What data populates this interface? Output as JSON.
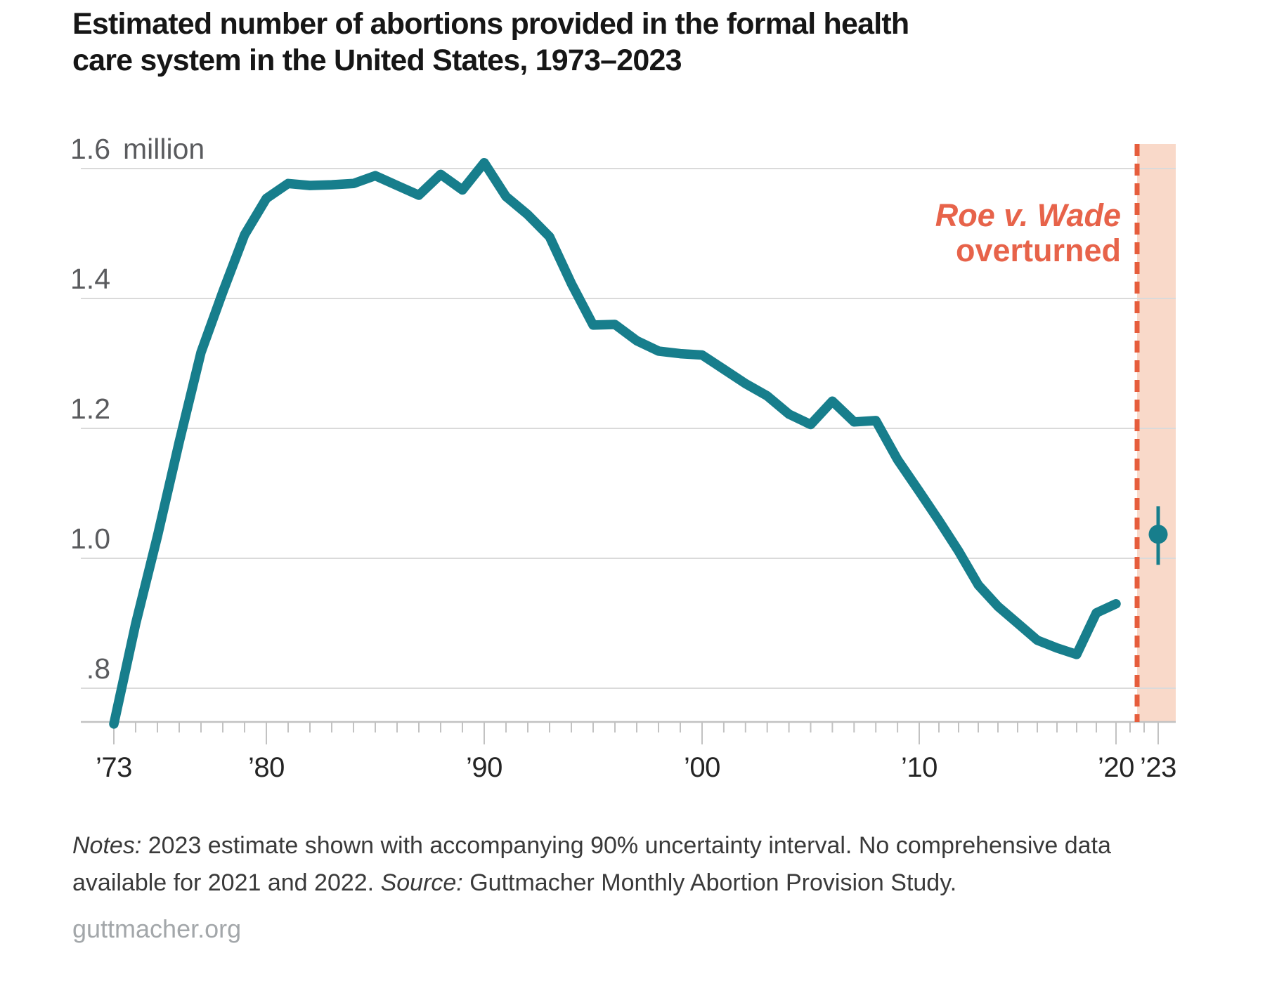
{
  "title": {
    "line1": "Estimated number of abortions provided in the formal health",
    "line2": "care system in the United States, 1973–2023"
  },
  "y_axis": {
    "unit_label": "million",
    "tick_labels": [
      "1.6",
      "1.4",
      "1.2",
      "1.0",
      ".8"
    ],
    "tick_values": [
      1.6,
      1.4,
      1.2,
      1.0,
      0.8
    ]
  },
  "x_axis": {
    "tick_labels": [
      {
        "year": 1973,
        "text": "’73"
      },
      {
        "year": 1980,
        "text": "’80"
      },
      {
        "year": 1990,
        "text": "’90"
      },
      {
        "year": 2000,
        "text": "’00"
      },
      {
        "year": 2010,
        "text": "’10"
      },
      {
        "year": 2020,
        "text": "’20"
      },
      {
        "year": 2023,
        "text": "’23"
      }
    ]
  },
  "annotation": {
    "line1": "Roe v. Wade",
    "line2": "overturned"
  },
  "notes": {
    "notes_label": "Notes:",
    "notes_body": "2023 estimate shown with accompanying 90% uncertainty interval. No comprehensive data available for 2021 and 2022.",
    "source_label": "Source:",
    "source_body": "Guttmacher Monthly Abortion Provision Study."
  },
  "footer": "guttmacher.org",
  "colors": {
    "line_teal": "#177e8c",
    "annotation_orange": "#e7634a",
    "dash_orange": "#e65d3c",
    "band_peach": "#f9d9c9",
    "gridline_gray": "#dadada",
    "axis_gray": "#c2c2c2",
    "ylabel_gray": "#5a5b5e",
    "xlabel_dark": "#242424",
    "title_black": "#161616",
    "footer_gray": "#a3a7aa"
  },
  "chart_data": {
    "type": "line",
    "title": "Estimated number of abortions provided in the formal health care system in the United States, 1973–2023",
    "xlabel": "",
    "ylabel": "million",
    "ylim": [
      0.73,
      1.65
    ],
    "xlim": [
      1973,
      2023.8
    ],
    "grid": "horizontal",
    "legend": "none",
    "unit": "millions of abortions",
    "x": [
      1973,
      1974,
      1975,
      1976,
      1977,
      1978,
      1979,
      1980,
      1981,
      1982,
      1983,
      1984,
      1985,
      1986,
      1987,
      1988,
      1989,
      1990,
      1991,
      1992,
      1993,
      1994,
      1995,
      1996,
      1997,
      1998,
      1999,
      2000,
      2001,
      2002,
      2003,
      2004,
      2005,
      2006,
      2007,
      2008,
      2009,
      2010,
      2011,
      2012,
      2013,
      2014,
      2015,
      2016,
      2017,
      2018,
      2019,
      2020
    ],
    "values": [
      0.745,
      0.899,
      1.034,
      1.179,
      1.317,
      1.41,
      1.498,
      1.554,
      1.577,
      1.574,
      1.575,
      1.577,
      1.589,
      1.574,
      1.559,
      1.591,
      1.567,
      1.609,
      1.557,
      1.529,
      1.495,
      1.423,
      1.359,
      1.36,
      1.335,
      1.319,
      1.315,
      1.313,
      1.291,
      1.269,
      1.25,
      1.222,
      1.206,
      1.242,
      1.21,
      1.212,
      1.152,
      1.103,
      1.058,
      1.011,
      0.959,
      0.926,
      0.9,
      0.874,
      0.862,
      0.852,
      0.916,
      0.93
    ],
    "missing_years": [
      2021,
      2022
    ],
    "point_2023": {
      "year": 2023,
      "estimate": 1.037,
      "ci_low": 0.99,
      "ci_high": 1.08,
      "ci_level": "90%"
    },
    "event_marker": {
      "label": "Roe v. Wade overturned",
      "style": "dashed-vertical-line-with-shaded-band"
    }
  }
}
